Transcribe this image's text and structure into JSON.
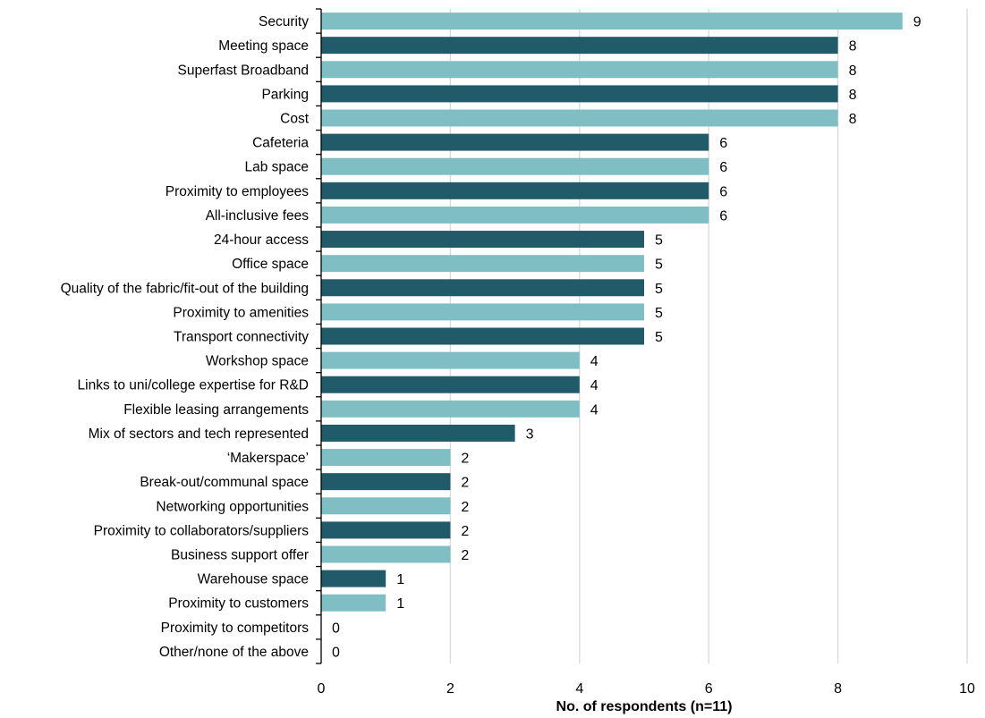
{
  "chart_data": {
    "type": "bar",
    "orientation": "horizontal",
    "categories": [
      "Security",
      "Meeting space",
      "Superfast Broadband",
      "Parking",
      "Cost",
      "Cafeteria",
      "Lab space",
      "Proximity to employees",
      "All-inclusive fees",
      "24-hour access",
      "Office space",
      "Quality of the fabric/fit-out of the building",
      "Proximity to amenities",
      "Transport connectivity",
      "Workshop space",
      "Links to uni/college expertise for R&D",
      "Flexible leasing arrangements",
      "Mix of sectors and tech represented",
      "‘Makerspace’",
      "Break-out/communal space",
      "Networking opportunities",
      "Proximity to collaborators/suppliers",
      "Business support offer",
      "Warehouse space",
      "Proximity to customers",
      "Proximity to competitors",
      "Other/none of the above"
    ],
    "values": [
      9,
      8,
      8,
      8,
      8,
      6,
      6,
      6,
      6,
      5,
      5,
      5,
      5,
      5,
      4,
      4,
      4,
      3,
      2,
      2,
      2,
      2,
      2,
      1,
      1,
      0,
      0
    ],
    "xlabel": "No. of respondents (n=11)",
    "ylabel": "",
    "xlim": [
      0,
      10
    ],
    "xticks": [
      "0",
      "2",
      "4",
      "6",
      "8",
      "10"
    ],
    "grid": "vertical",
    "data_labels": true,
    "colors": [
      "#7fbfc4",
      "#215a68"
    ]
  }
}
